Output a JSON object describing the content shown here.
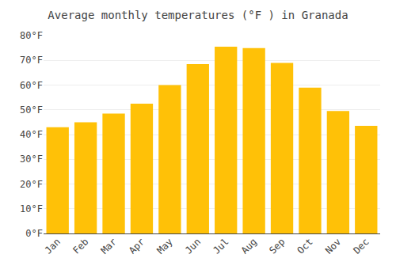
{
  "chart_data": {
    "type": "bar",
    "title": "Average monthly temperatures (°F ) in Granada",
    "categories": [
      "Jan",
      "Feb",
      "Mar",
      "Apr",
      "May",
      "Jun",
      "Jul",
      "Aug",
      "Sep",
      "Oct",
      "Nov",
      "Dec"
    ],
    "values": [
      43,
      45,
      48.5,
      52.5,
      60,
      68.5,
      75.5,
      75,
      69,
      59,
      49.5,
      43.5
    ],
    "color": "#FFC107",
    "ylim": [
      0,
      80
    ],
    "yticks": [
      {
        "value": 0,
        "label": "0°F"
      },
      {
        "value": 10,
        "label": "10°F"
      },
      {
        "value": 20,
        "label": "20°F"
      },
      {
        "value": 30,
        "label": "30°F"
      },
      {
        "value": 40,
        "label": "40°F"
      },
      {
        "value": 50,
        "label": "50°F"
      },
      {
        "value": 60,
        "label": "60°F"
      },
      {
        "value": 70,
        "label": "70°F"
      },
      {
        "value": 80,
        "label": "80°F"
      }
    ],
    "grid": true
  }
}
